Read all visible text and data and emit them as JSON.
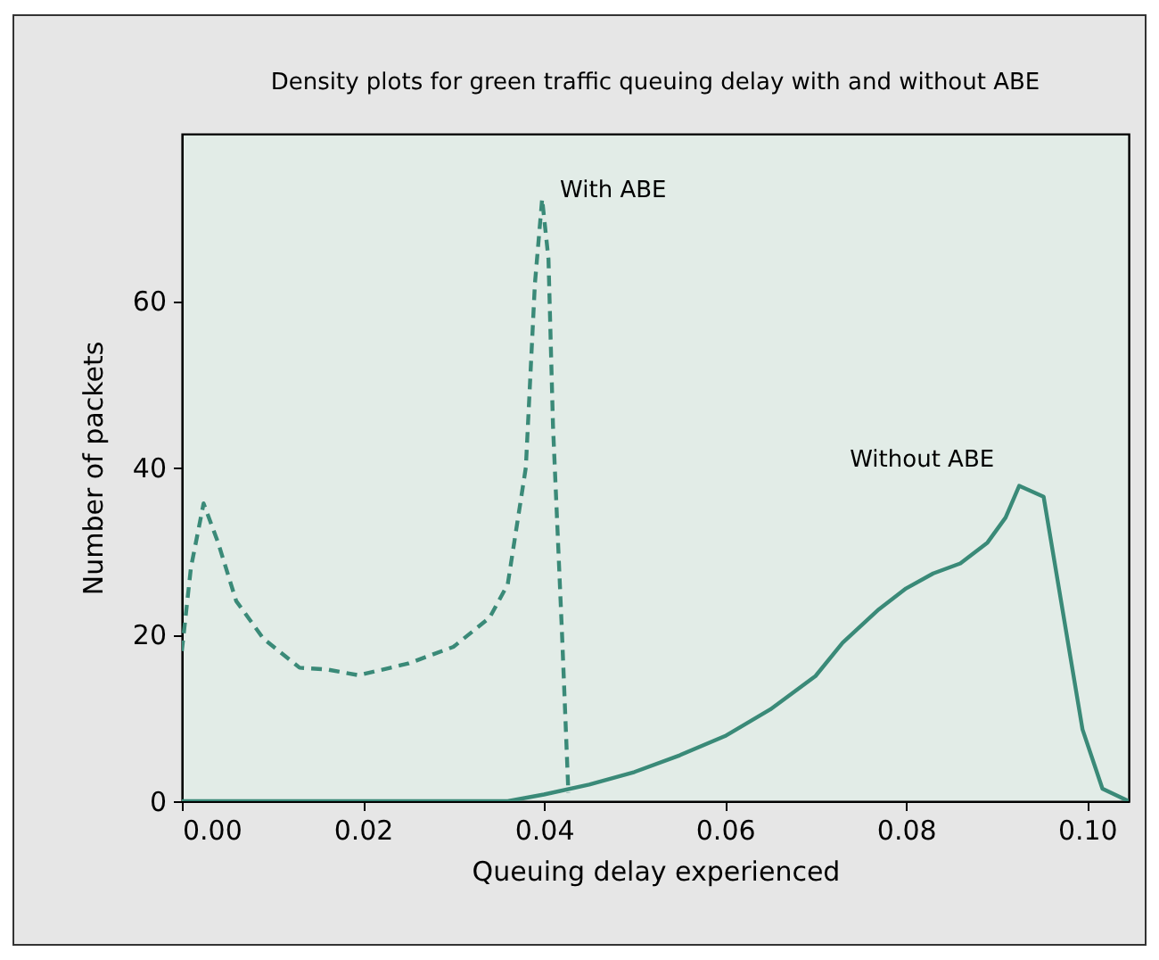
{
  "chart_data": {
    "type": "line",
    "title": "Density plots for green traffic queuing delay with and without ABE",
    "xlabel": "Queuing delay experienced",
    "ylabel": "Number of packets",
    "xlim": [
      0,
      0.1046
    ],
    "ylim": [
      0,
      80
    ],
    "xticks": [
      {
        "value": 0,
        "label": "0.00"
      },
      {
        "value": 0.02,
        "label": "0.02"
      },
      {
        "value": 0.04,
        "label": "0.04"
      },
      {
        "value": 0.06,
        "label": "0.06"
      },
      {
        "value": 0.08,
        "label": "0.08"
      },
      {
        "value": 0.1,
        "label": "0.10"
      }
    ],
    "yticks": [
      0,
      20,
      40,
      60
    ],
    "grid": false,
    "series": [
      {
        "color": "#3a8a78",
        "line_style": "dashed",
        "x": [
          0,
          0.001,
          0.0024,
          0.004,
          0.006,
          0.009,
          0.013,
          0.016,
          0.0195,
          0.025,
          0.03,
          0.034,
          0.036,
          0.038,
          0.039,
          0.0398,
          0.0405,
          0.041,
          0.042,
          0.0427
        ],
        "values": [
          18,
          28,
          35.7,
          31,
          24,
          19.5,
          16,
          15.8,
          15.1,
          16.5,
          18.5,
          22,
          26,
          40,
          62,
          72.2,
          65,
          45,
          20,
          1
        ]
      },
      {
        "color": "#3a8a78",
        "line_style": "solid",
        "x": [
          0,
          0.036,
          0.04,
          0.045,
          0.05,
          0.055,
          0.06,
          0.065,
          0.07,
          0.073,
          0.077,
          0.08,
          0.083,
          0.086,
          0.089,
          0.091,
          0.0925,
          0.0952,
          0.0995,
          0.1017,
          0.1046
        ],
        "values": [
          0,
          0,
          0.8,
          2,
          3.5,
          5.5,
          7.8,
          11,
          15,
          19,
          23,
          25.5,
          27.3,
          28.5,
          31,
          34,
          37.8,
          36.5,
          8.6,
          1.5,
          0
        ]
      }
    ],
    "annotations": [
      {
        "text": "With ABE",
        "x": 0.0398,
        "y": 72.2
      },
      {
        "text": "Without ABE",
        "x": 0.0925,
        "y": 37.8
      }
    ]
  }
}
